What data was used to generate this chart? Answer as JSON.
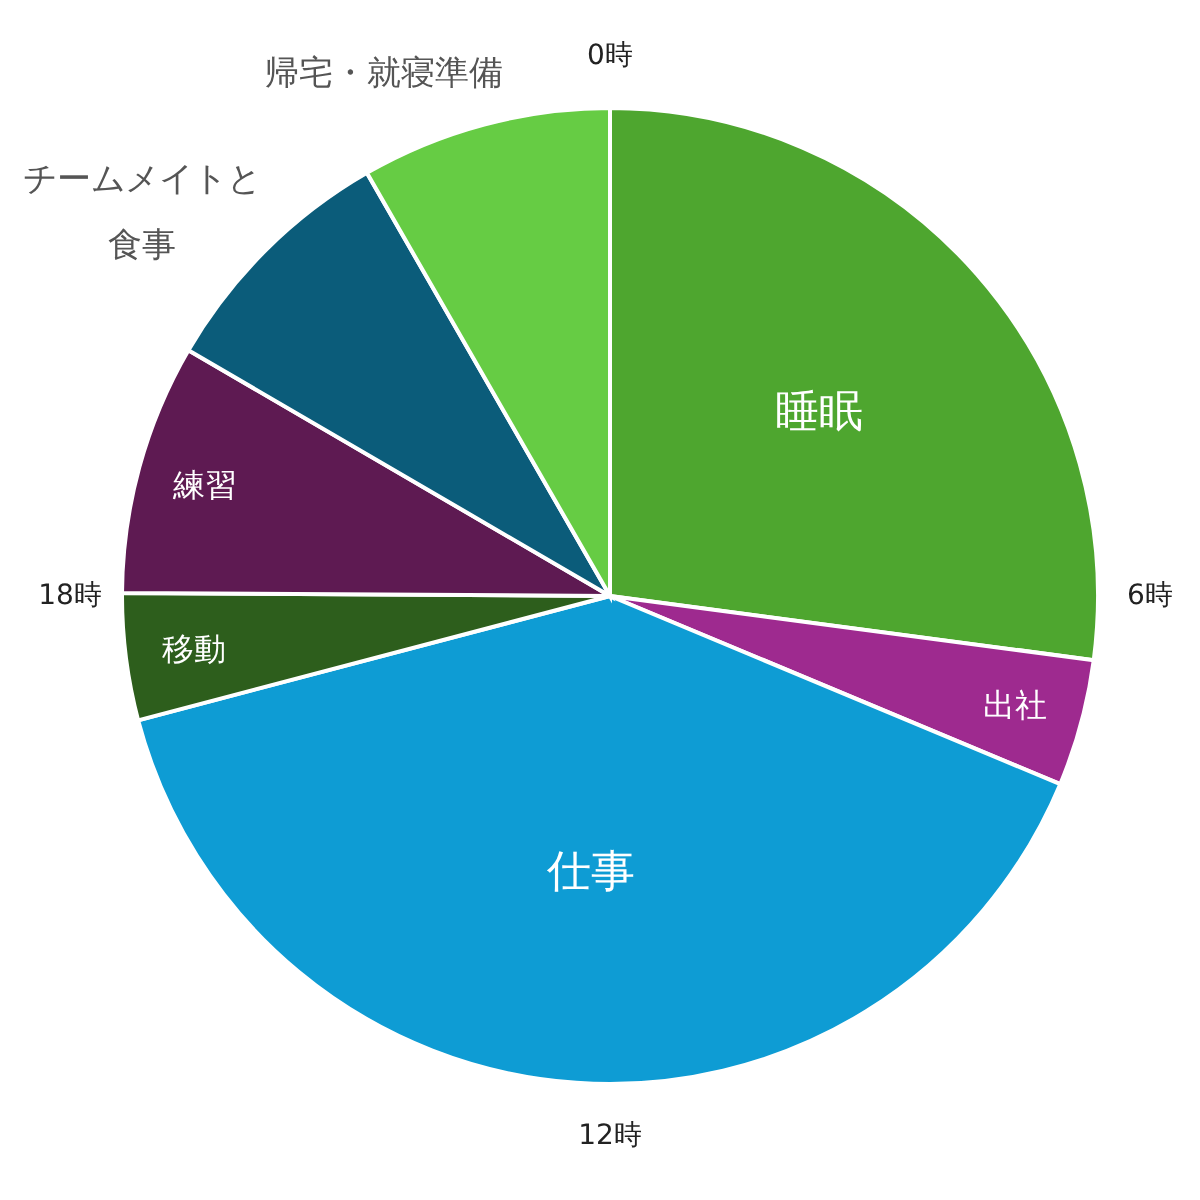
{
  "chart_data": {
    "type": "pie",
    "categories": [
      "睡眠",
      "出社",
      "仕事",
      "移動",
      "練習",
      "チームメイトと食事",
      "帰宅・就寝準備"
    ],
    "values": [
      27.1,
      4.2,
      39.6,
      4.2,
      8.3,
      8.3,
      8.3
    ],
    "colors": [
      "#4ea62f",
      "#9e2a8f",
      "#0e9cd4",
      "#2d5e1c",
      "#5e1a52",
      "#0b5c7a",
      "#66cc44"
    ],
    "annotations": [
      "0時",
      "6時",
      "12時",
      "18時"
    ]
  }
}
